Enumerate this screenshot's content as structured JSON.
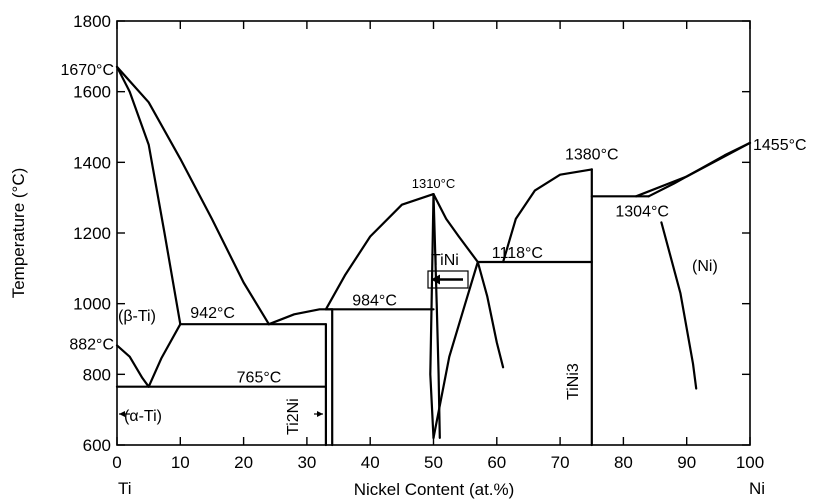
{
  "chart_data": {
    "type": "line",
    "xlabel": "Nickel Content (at.%)",
    "ylabel": "Temperature (°C)",
    "xlim": [
      0,
      100
    ],
    "ylim": [
      600,
      1800
    ],
    "x_ticks": [
      "0",
      "10",
      "20",
      "30",
      "40",
      "50",
      "60",
      "70",
      "80",
      "90",
      "100"
    ],
    "y_ticks": [
      "600",
      "800",
      "1000",
      "1200",
      "1400",
      "1600",
      "1800"
    ],
    "grid": false,
    "legend": "none",
    "end_labels": {
      "left": "Ti",
      "right": "Ni"
    },
    "temperature_labels": [
      {
        "text": "1670°C",
        "x": 0,
        "y": 1670
      },
      {
        "text": "882°C",
        "x": 0,
        "y": 882
      },
      {
        "text": "942°C",
        "x": 10,
        "y": 942
      },
      {
        "text": "765°C",
        "x": 5,
        "y": 765
      },
      {
        "text": "984°C",
        "x": 34,
        "y": 984
      },
      {
        "text": "1310°C",
        "x": 50,
        "y": 1310
      },
      {
        "text": "1118°C",
        "x": 57,
        "y": 1118
      },
      {
        "text": "1380°C",
        "x": 75,
        "y": 1380
      },
      {
        "text": "1304°C",
        "x": 83,
        "y": 1304
      },
      {
        "text": "1455°C",
        "x": 100,
        "y": 1455
      }
    ],
    "phase_labels": [
      "(β-Ti)",
      "(α-Ti)",
      "Ti2Ni",
      "TiNi",
      "TiNi3",
      "(Ni)"
    ],
    "series": [
      {
        "values": [
          [
            0,
            1670
          ],
          [
            2,
            1600
          ],
          [
            5,
            1450
          ],
          [
            7.5,
            1200
          ],
          [
            10,
            942
          ]
        ]
      },
      {
        "values": [
          [
            0,
            1670
          ],
          [
            5,
            1570
          ],
          [
            10,
            1410
          ],
          [
            15,
            1240
          ],
          [
            20,
            1060
          ],
          [
            24,
            942
          ]
        ]
      },
      {
        "values": [
          [
            0,
            882
          ],
          [
            2,
            850
          ],
          [
            4,
            790
          ],
          [
            5,
            765
          ],
          [
            7,
            845
          ],
          [
            10,
            942
          ]
        ]
      },
      {
        "values": [
          [
            10,
            942
          ],
          [
            24,
            942
          ],
          [
            33,
            942
          ]
        ]
      },
      {
        "values": [
          [
            24,
            942
          ],
          [
            28,
            970
          ],
          [
            32,
            984
          ],
          [
            34,
            984
          ]
        ]
      },
      {
        "values": [
          [
            0,
            765
          ],
          [
            33,
            765
          ]
        ]
      },
      {
        "values": [
          [
            33,
            984
          ],
          [
            50,
            984
          ]
        ]
      },
      {
        "values": [
          [
            33,
            942
          ],
          [
            33,
            600
          ]
        ]
      },
      {
        "values": [
          [
            34,
            984
          ],
          [
            34,
            600
          ]
        ]
      },
      {
        "values": [
          [
            33,
            984
          ],
          [
            36,
            1080
          ],
          [
            40,
            1190
          ],
          [
            45,
            1280
          ],
          [
            50,
            1310
          ]
        ]
      },
      {
        "values": [
          [
            50,
            1310
          ],
          [
            52,
            1240
          ],
          [
            54,
            1190
          ],
          [
            57,
            1118
          ]
        ]
      },
      {
        "values": [
          [
            50,
            1310
          ],
          [
            49.7,
            1000
          ],
          [
            49.5,
            800
          ],
          [
            50,
            620
          ]
        ]
      },
      {
        "values": [
          [
            50,
            1310
          ],
          [
            50.5,
            1000
          ],
          [
            50.8,
            800
          ],
          [
            51,
            620
          ]
        ]
      },
      {
        "values": [
          [
            50,
            620
          ],
          [
            52.5,
            850
          ],
          [
            55,
            1000
          ],
          [
            57,
            1118
          ]
        ]
      },
      {
        "values": [
          [
            57,
            1118
          ],
          [
            75,
            1118
          ]
        ]
      },
      {
        "values": [
          [
            57,
            1118
          ],
          [
            58.5,
            1020
          ],
          [
            60,
            890
          ],
          [
            61,
            820
          ]
        ]
      },
      {
        "values": [
          [
            61,
            1118
          ],
          [
            63,
            1240
          ],
          [
            66,
            1320
          ],
          [
            70,
            1365
          ],
          [
            75,
            1380
          ]
        ]
      },
      {
        "values": [
          [
            75,
            1380
          ],
          [
            75,
            600
          ]
        ]
      },
      {
        "values": [
          [
            75,
            1304
          ],
          [
            84,
            1304
          ]
        ]
      },
      {
        "values": [
          [
            84,
            1304
          ],
          [
            88,
            1340
          ],
          [
            92,
            1380
          ],
          [
            96,
            1420
          ],
          [
            100,
            1455
          ]
        ]
      },
      {
        "values": [
          [
            82,
            1304
          ],
          [
            90,
            1360
          ],
          [
            100,
            1455
          ]
        ]
      },
      {
        "values": [
          [
            86,
            1230
          ],
          [
            89,
            1030
          ],
          [
            91,
            830
          ],
          [
            91.5,
            760
          ]
        ]
      }
    ]
  }
}
